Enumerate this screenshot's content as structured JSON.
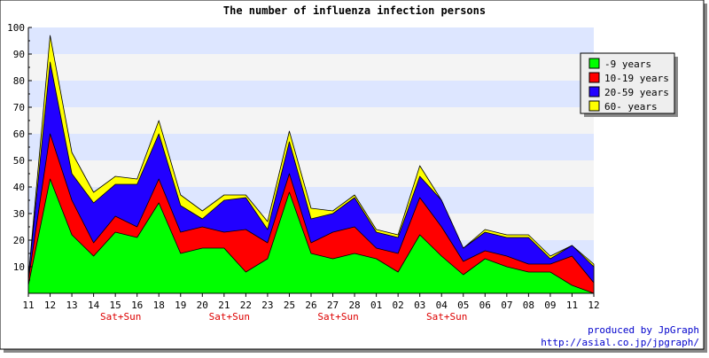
{
  "chart_data": {
    "type": "area",
    "stacked": true,
    "title": "The number of influenza infection persons",
    "xlabel": "",
    "ylabel": "",
    "ylim": [
      0,
      100
    ],
    "yticks": [
      10,
      20,
      30,
      40,
      50,
      60,
      70,
      80,
      90,
      100
    ],
    "categories": [
      "11",
      "12",
      "13",
      "14",
      "15",
      "16",
      "18",
      "19",
      "20",
      "21",
      "22",
      "23",
      "25",
      "26",
      "27",
      "28",
      "01",
      "02",
      "03",
      "04",
      "05",
      "06",
      "07",
      "08",
      "09",
      "11",
      "12"
    ],
    "weekend_labels": [
      {
        "category_index": 4,
        "text": "Sat+Sun"
      },
      {
        "category_index": 9,
        "text": "Sat+Sun"
      },
      {
        "category_index": 14,
        "text": "Sat+Sun"
      },
      {
        "category_index": 19,
        "text": "Sat+Sun"
      }
    ],
    "legend_position": "top-right",
    "grid": "horizontal bands",
    "series": [
      {
        "name": "-9 years",
        "color": "#00ff00",
        "values": [
          3,
          43,
          22,
          14,
          23,
          21,
          34,
          15,
          17,
          17,
          8,
          13,
          38,
          15,
          13,
          15,
          13,
          8,
          22,
          14,
          7,
          13,
          10,
          8,
          8,
          3,
          0
        ]
      },
      {
        "name": "10-19 years",
        "color": "#ff0000",
        "values": [
          2,
          17,
          13,
          5,
          6,
          4,
          9,
          8,
          8,
          6,
          16,
          6,
          7,
          4,
          10,
          10,
          4,
          7,
          14,
          11,
          5,
          3,
          4,
          3,
          3,
          11,
          4
        ]
      },
      {
        "name": "20-59 years",
        "color": "#2200ff",
        "values": [
          1,
          27,
          10,
          15,
          12,
          16,
          17,
          10,
          3,
          12,
          12,
          5,
          12,
          9,
          7,
          11,
          6,
          6,
          8,
          10,
          5,
          7,
          7,
          10,
          2,
          4,
          6
        ]
      },
      {
        "name": "60- years",
        "color": "#ffff00",
        "values": [
          0,
          10,
          8,
          4,
          3,
          2,
          5,
          4,
          3,
          2,
          1,
          3,
          4,
          4,
          1,
          1,
          1,
          1,
          4,
          0,
          0,
          1,
          1,
          1,
          1,
          0,
          1
        ]
      }
    ]
  },
  "credit": {
    "line1": "produced by JpGraph",
    "line2": "http://asial.co.jp/jpgraph/"
  },
  "colors": {
    "band_blue": "#dde6ff",
    "band_gray": "#f4f4f4",
    "weekend_text": "#dd0000",
    "credit_text": "#0000cc",
    "frame_shadow": "#888888"
  }
}
